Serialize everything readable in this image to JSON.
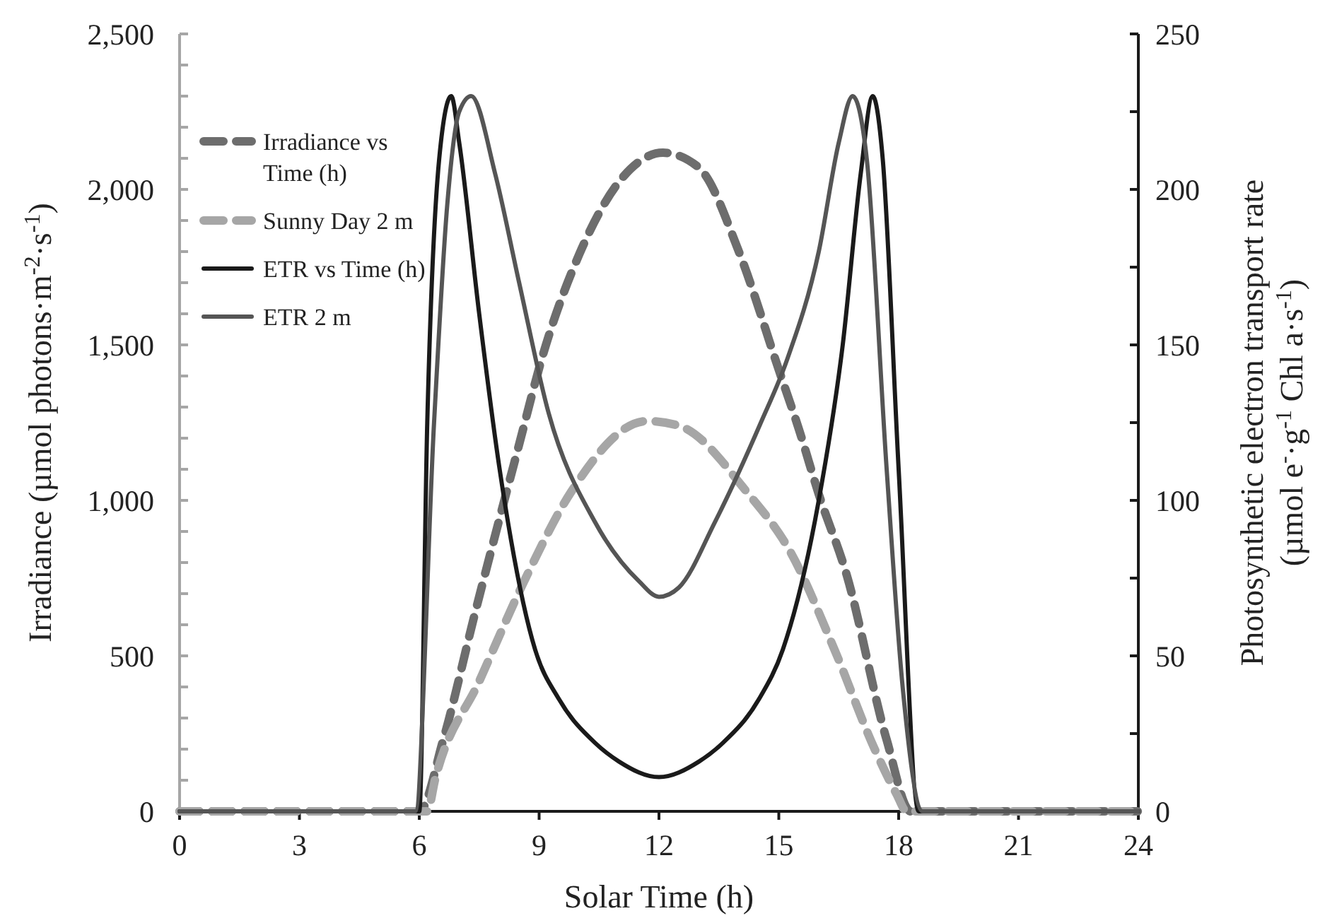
{
  "chart_data": {
    "type": "line",
    "xlabel": "Solar Time (h)",
    "ylabel": "Irradiance (µmol photons·m$^{-2}$·s$^{-1}$)",
    "y2label": "Photosynthetic electron transport rate\n(µmol e$^{-}$·g$^{-1}$ Chl a·s$^{-1}$)",
    "xlim": [
      0,
      24
    ],
    "xticks": [
      0,
      3,
      6,
      9,
      12,
      15,
      18,
      21,
      24
    ],
    "ylim": [
      0,
      2500
    ],
    "yticks": [
      {
        "value": 0,
        "label": "0"
      },
      {
        "value": 100,
        "label": null
      },
      {
        "value": 200,
        "label": null
      },
      {
        "value": 300,
        "label": null
      },
      {
        "value": 400,
        "label": null
      },
      {
        "value": 500,
        "label": "500"
      },
      {
        "value": 600,
        "label": null
      },
      {
        "value": 700,
        "label": null
      },
      {
        "value": 800,
        "label": null
      },
      {
        "value": 900,
        "label": null
      },
      {
        "value": 1000,
        "label": "1,000"
      },
      {
        "value": 1100,
        "label": null
      },
      {
        "value": 1200,
        "label": null
      },
      {
        "value": 1300,
        "label": null
      },
      {
        "value": 1400,
        "label": null
      },
      {
        "value": 1500,
        "label": "1,500"
      },
      {
        "value": 1600,
        "label": null
      },
      {
        "value": 1700,
        "label": null
      },
      {
        "value": 1800,
        "label": null
      },
      {
        "value": 1900,
        "label": null
      },
      {
        "value": 2000,
        "label": "2,000"
      },
      {
        "value": 2100,
        "label": null
      },
      {
        "value": 2200,
        "label": null
      },
      {
        "value": 2300,
        "label": null
      },
      {
        "value": 2400,
        "label": null
      },
      {
        "value": 2500,
        "label": "2,500"
      }
    ],
    "y2lim": [
      0,
      250
    ],
    "y2ticks": [
      0,
      {
        "value": 25,
        "label": null
      },
      50,
      {
        "value": 75,
        "label": null
      },
      100,
      {
        "value": 125,
        "label": null
      },
      150,
      {
        "value": 175,
        "label": null
      },
      200,
      {
        "value": 225,
        "label": null
      },
      250
    ],
    "legend": "top left",
    "grid": false,
    "series": [
      {
        "name": "Irradiance vs Time (h)",
        "color": "#6d6d6d",
        "line_style": "dashed",
        "x": [
          0,
          6,
          6.6,
          7.4,
          8.5,
          9.1,
          10,
          11.1,
          12.1,
          13,
          14,
          15,
          15.5,
          16,
          16.7,
          17.7,
          18.3,
          24
        ],
        "values": [
          0,
          0,
          230,
          640,
          1180,
          1470,
          1790,
          2040,
          2118,
          2070,
          1800,
          1420,
          1230,
          1020,
          760,
          230,
          0,
          0
        ]
      },
      {
        "name": "Sunny Day 2 m",
        "color": "#a6a6a6",
        "line_style": "dashed",
        "x": [
          0,
          6.2,
          6.4,
          7.5,
          8.7,
          9.8,
          11.7,
          12.5,
          14.2,
          15.3,
          16.4,
          17.4,
          17.95,
          18.2,
          24
        ],
        "values": [
          0,
          0,
          105,
          418,
          760,
          1027,
          1255,
          1240,
          1027,
          832,
          518,
          200,
          55,
          0,
          0
        ]
      },
      {
        "name": "ETR vs Time (h)",
        "color": "#1a1a1a",
        "line_style": "solid",
        "axis": "y2",
        "x": [
          0,
          6,
          6.2,
          6.5,
          6.8,
          7.0,
          7.5,
          8.0,
          8.9,
          9.5,
          10.4,
          11,
          12,
          13,
          13.6,
          14.5,
          15.1,
          16.0,
          16.6,
          17.05,
          17.35,
          17.6,
          18,
          18.5,
          24
        ],
        "values": [
          0,
          0,
          125,
          210,
          230,
          215,
          160,
          111,
          52,
          36,
          22,
          16,
          11,
          16,
          22,
          36,
          52,
          100,
          150,
          205,
          230,
          210,
          110,
          0,
          0
        ]
      },
      {
        "name": "ETR 2 m",
        "color": "#555555",
        "line_style": "solid",
        "axis": "y2",
        "x": [
          0,
          5.9,
          6.37,
          6.7,
          7.0,
          7.3,
          7.9,
          8.5,
          9.24,
          10.4,
          11.5,
          12,
          12.5,
          13.4,
          14.55,
          15.2,
          16,
          16.5,
          16.85,
          17.2,
          17.7,
          18.1,
          18.6,
          24
        ],
        "values": [
          0,
          0,
          125,
          195,
          225,
          230,
          205,
          170,
          128,
          93,
          74,
          69,
          72,
          93,
          125,
          145,
          180,
          215,
          230,
          210,
          110,
          40,
          0,
          0
        ]
      }
    ]
  }
}
